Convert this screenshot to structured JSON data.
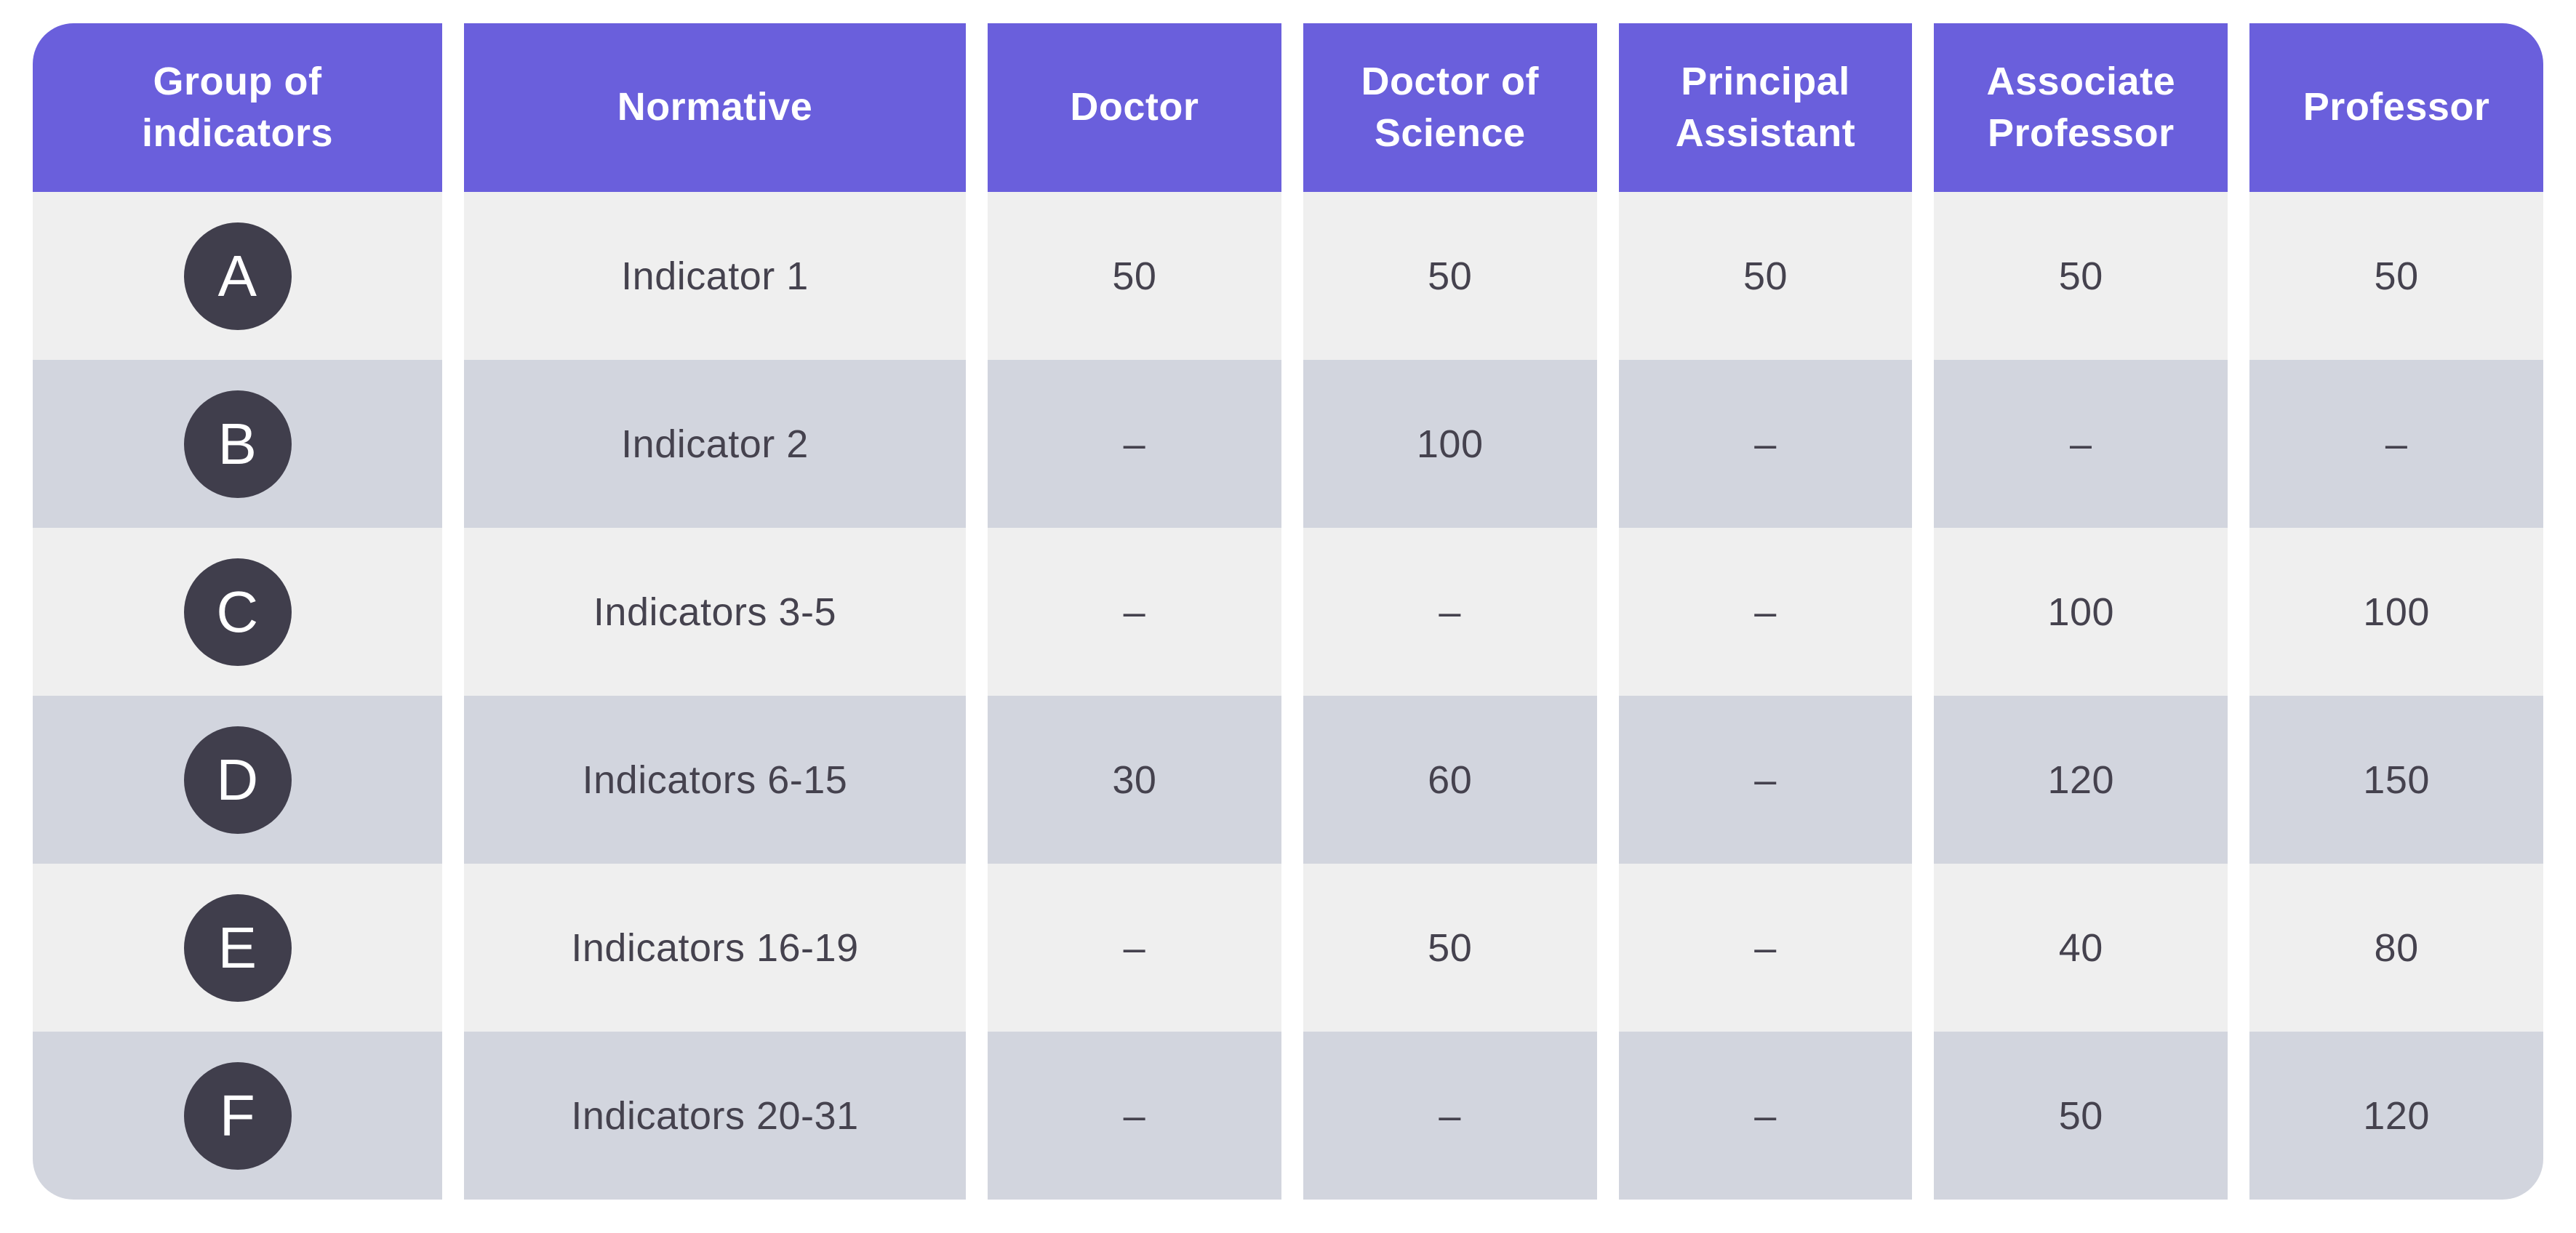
{
  "chart_data": {
    "type": "table",
    "columns": [
      "Group of indicators",
      "Normative",
      "Doctor",
      "Doctor of Science",
      "Principal Assistant",
      "Associate Professor",
      "Professor"
    ],
    "rows": [
      [
        "A",
        "Indicator 1",
        "50",
        "50",
        "50",
        "50",
        "50"
      ],
      [
        "B",
        "Indicator 2",
        "–",
        "100",
        "–",
        "–",
        "–"
      ],
      [
        "C",
        "Indicators 3-5",
        "–",
        "–",
        "–",
        "100",
        "100"
      ],
      [
        "D",
        "Indicators 6-15",
        "30",
        "60",
        "–",
        "120",
        "150"
      ],
      [
        "E",
        "Indicators 16-19",
        "–",
        "50",
        "–",
        "40",
        "80"
      ],
      [
        "F",
        "Indicators 20-31",
        "–",
        "–",
        "–",
        "50",
        "120"
      ]
    ]
  },
  "colors": {
    "page_bg": "#FFFFFF",
    "header_bg": "#6A5FDC",
    "header_text": "#FFFFFF",
    "row_light": "#EFEFEF",
    "row_dark": "#D2D5DE",
    "badge_bg": "#403E4C",
    "text": "#45424E"
  }
}
